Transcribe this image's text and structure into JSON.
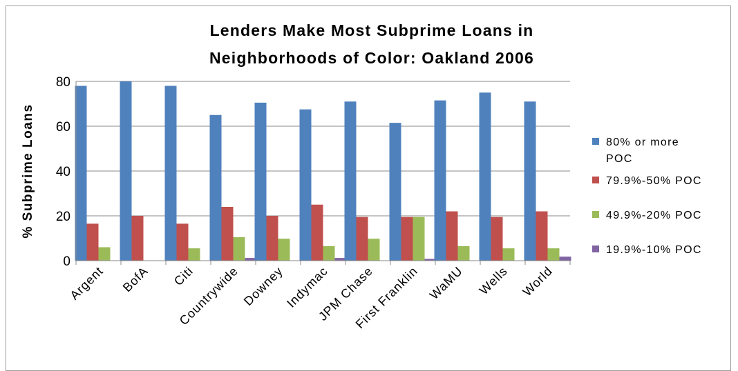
{
  "chart_data": {
    "type": "bar",
    "title_line1": "Lenders Make Most Subprime Loans in",
    "title_line2": "Neighborhoods of Color: Oakland 2006",
    "xlabel": "",
    "ylabel": "% Subprime Loans",
    "ylim": [
      0,
      80
    ],
    "yticks": [
      0,
      20,
      40,
      60,
      80
    ],
    "grid": true,
    "legend_position": "right",
    "categories": [
      "Argent",
      "BofA",
      "Citi",
      "Countrywide",
      "Downey",
      "Indymac",
      "JPM Chase",
      "First Franklin",
      "WaMU",
      "Wells",
      "World"
    ],
    "series": [
      {
        "name": "80% or more POC",
        "name_line1": "80% or more",
        "name_line2": "POC",
        "color": "#4f81bd",
        "values": [
          78,
          80,
          78,
          65,
          70.5,
          67.5,
          71,
          61.5,
          71.5,
          75,
          71
        ]
      },
      {
        "name": "79.9%-50% POC",
        "color": "#c0504d",
        "values": [
          16.5,
          20,
          16.5,
          24,
          20,
          25,
          19.5,
          19.5,
          22,
          19.5,
          22
        ]
      },
      {
        "name": "49.9%-20% POC",
        "color": "#9bbb59",
        "values": [
          6,
          0,
          5.5,
          10.5,
          9.8,
          6.5,
          9.8,
          19.5,
          6.5,
          5.5,
          5.5
        ]
      },
      {
        "name": "19.9%-10% POC",
        "color": "#8064a2",
        "values": [
          0,
          0,
          0,
          1.2,
          0,
          1.2,
          0,
          0.8,
          0,
          0,
          1.8
        ]
      }
    ]
  }
}
